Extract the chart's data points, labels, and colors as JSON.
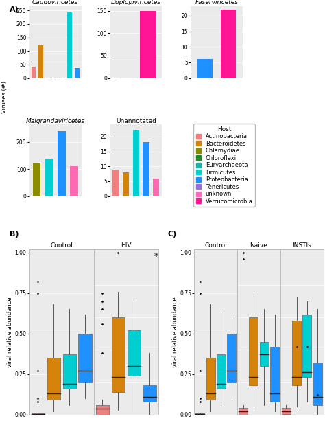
{
  "host_colors": {
    "Actinobacteria": "#F08080",
    "Bacteroidetes": "#D4820A",
    "Chlamydiae": "#8B8B00",
    "Chloroflexi": "#228B22",
    "Euryarchaeota": "#20B2AA",
    "Firmicutes": "#00CED1",
    "Proteobacteria": "#1E90FF",
    "Tenericutes": "#9370DB",
    "unknown": "#FF69B4",
    "Verrucomicrobia": "#FF1493"
  },
  "host_order": [
    "Actinobacteria",
    "Bacteroidetes",
    "Chlamydiae",
    "Chloroflexi",
    "Euryarchaeota",
    "Firmicutes",
    "Proteobacteria",
    "Tenericutes",
    "unknown",
    "Verrucomicrobia"
  ],
  "panel_A": {
    "subplots": [
      {
        "title": "Caudoviricetes",
        "italic": true,
        "bars": {
          "Actinobacteria": 42,
          "Bacteroidetes": 120,
          "Chlamydiae": 2,
          "Chloroflexi": 1,
          "Euryarchaeota": 1,
          "Firmicutes": 243,
          "Proteobacteria": 38,
          "Tenericutes": 0,
          "unknown": 0,
          "Verrucomicrobia": 0
        },
        "yticks": [
          0,
          50,
          100,
          150,
          200,
          250
        ],
        "ylim": [
          0,
          265
        ]
      },
      {
        "title": "Duplopiviricetes",
        "italic": true,
        "bars": {
          "Actinobacteria": 0,
          "Bacteroidetes": 0,
          "Chlamydiae": 0,
          "Chloroflexi": 0,
          "Euryarchaeota": 0,
          "Firmicutes": 1,
          "Proteobacteria": 0,
          "Tenericutes": 0,
          "unknown": 0,
          "Verrucomicrobia": 150
        },
        "yticks": [
          0,
          50,
          100,
          150
        ],
        "ylim": [
          0,
          160
        ]
      },
      {
        "title": "Faserviricetes",
        "italic": true,
        "bars": {
          "Actinobacteria": 0,
          "Bacteroidetes": 0,
          "Chlamydiae": 0,
          "Chloroflexi": 0,
          "Euryarchaeota": 0,
          "Firmicutes": 0,
          "Proteobacteria": 6,
          "Tenericutes": 0,
          "unknown": 0,
          "Verrucomicrobia": 22
        },
        "yticks": [
          0,
          5,
          10,
          15,
          20
        ],
        "ylim": [
          0,
          23
        ]
      },
      {
        "title": "Malgrandaviricetes",
        "italic": true,
        "bars": {
          "Actinobacteria": 0,
          "Bacteroidetes": 0,
          "Chlamydiae": 125,
          "Chloroflexi": 0,
          "Euryarchaeota": 0,
          "Firmicutes": 140,
          "Proteobacteria": 240,
          "Tenericutes": 0,
          "unknown": 110,
          "Verrucomicrobia": 0
        },
        "yticks": [
          0,
          100,
          200
        ],
        "ylim": [
          0,
          265
        ]
      },
      {
        "title": "Unannotated",
        "italic": false,
        "bars": {
          "Actinobacteria": 9,
          "Bacteroidetes": 8,
          "Chlamydiae": 0,
          "Chloroflexi": 0,
          "Euryarchaeota": 0,
          "Firmicutes": 22,
          "Proteobacteria": 18,
          "Tenericutes": 0,
          "unknown": 6,
          "Verrucomicrobia": 0
        },
        "yticks": [
          0,
          5,
          10,
          15,
          20
        ],
        "ylim": [
          0,
          24
        ]
      }
    ]
  },
  "panel_B": {
    "groups": [
      "Control",
      "HIV"
    ],
    "hosts_shown": [
      "Actinobacteria",
      "Bacteroidetes",
      "Firmicutes",
      "Proteobacteria"
    ],
    "colors": [
      "#F08080",
      "#D4820A",
      "#00CED1",
      "#1E90FF"
    ],
    "data": {
      "Control": {
        "Actinobacteria": {
          "q1": 0.002,
          "med": 0.004,
          "q3": 0.007,
          "whislo": 0.0,
          "whishi": 0.013,
          "fliers": [
            0.27,
            0.82,
            0.75,
            0.1,
            0.08
          ]
        },
        "Bacteroidetes": {
          "q1": 0.09,
          "med": 0.13,
          "q3": 0.35,
          "whislo": 0.02,
          "whishi": 0.68,
          "fliers": []
        },
        "Firmicutes": {
          "q1": 0.16,
          "med": 0.19,
          "q3": 0.37,
          "whislo": 0.06,
          "whishi": 0.65,
          "fliers": []
        },
        "Proteobacteria": {
          "q1": 0.2,
          "med": 0.27,
          "q3": 0.5,
          "whislo": 0.1,
          "whishi": 0.62,
          "fliers": []
        }
      },
      "HIV": {
        "Actinobacteria": {
          "q1": 0.0,
          "med": 0.035,
          "q3": 0.06,
          "whislo": 0.0,
          "whishi": 0.09,
          "fliers": [
            0.38,
            0.65,
            0.7,
            0.75,
            0.56
          ]
        },
        "Bacteroidetes": {
          "q1": 0.14,
          "med": 0.23,
          "q3": 0.6,
          "whislo": 0.03,
          "whishi": 0.76,
          "fliers": [
            1.0
          ]
        },
        "Firmicutes": {
          "q1": 0.24,
          "med": 0.3,
          "q3": 0.52,
          "whislo": 0.02,
          "whishi": 0.72,
          "fliers": []
        },
        "Proteobacteria": {
          "q1": 0.08,
          "med": 0.11,
          "q3": 0.18,
          "whislo": 0.0,
          "whishi": 0.38,
          "fliers": []
        }
      }
    },
    "ylabel": "viral relative abundance",
    "ylim": [
      0.0,
      1.02
    ],
    "sig_group": "HIV",
    "sig_text": "*"
  },
  "panel_C": {
    "groups": [
      "Control",
      "Naive",
      "INSTIs"
    ],
    "hosts_shown": [
      "Actinobacteria",
      "Bacteroidetes",
      "Firmicutes",
      "Proteobacteria"
    ],
    "colors": [
      "#F08080",
      "#D4820A",
      "#00CED1",
      "#1E90FF"
    ],
    "data": {
      "Control": {
        "Actinobacteria": {
          "q1": 0.002,
          "med": 0.004,
          "q3": 0.007,
          "whislo": 0.0,
          "whishi": 0.013,
          "fliers": [
            0.27,
            0.82,
            0.75,
            0.1,
            0.08
          ]
        },
        "Bacteroidetes": {
          "q1": 0.09,
          "med": 0.13,
          "q3": 0.35,
          "whislo": 0.02,
          "whishi": 0.68,
          "fliers": []
        },
        "Firmicutes": {
          "q1": 0.16,
          "med": 0.19,
          "q3": 0.37,
          "whislo": 0.06,
          "whishi": 0.65,
          "fliers": []
        },
        "Proteobacteria": {
          "q1": 0.2,
          "med": 0.27,
          "q3": 0.5,
          "whislo": 0.1,
          "whishi": 0.62,
          "fliers": []
        }
      },
      "Naive": {
        "Actinobacteria": {
          "q1": 0.0,
          "med": 0.02,
          "q3": 0.04,
          "whislo": 0.0,
          "whishi": 0.06,
          "fliers": [
            1.0,
            0.96
          ]
        },
        "Bacteroidetes": {
          "q1": 0.18,
          "med": 0.23,
          "q3": 0.6,
          "whislo": 0.05,
          "whishi": 0.75,
          "fliers": []
        },
        "Firmicutes": {
          "q1": 0.3,
          "med": 0.37,
          "q3": 0.45,
          "whislo": 0.06,
          "whishi": 0.65,
          "fliers": []
        },
        "Proteobacteria": {
          "q1": 0.08,
          "med": 0.13,
          "q3": 0.42,
          "whislo": 0.02,
          "whishi": 0.62,
          "fliers": []
        }
      },
      "INSTIs": {
        "Actinobacteria": {
          "q1": 0.002,
          "med": 0.02,
          "q3": 0.04,
          "whislo": 0.0,
          "whishi": 0.06,
          "fliers": []
        },
        "Bacteroidetes": {
          "q1": 0.18,
          "med": 0.23,
          "q3": 0.58,
          "whislo": 0.05,
          "whishi": 0.73,
          "fliers": [
            0.42
          ]
        },
        "Firmicutes": {
          "q1": 0.23,
          "med": 0.26,
          "q3": 0.62,
          "whislo": 0.08,
          "whishi": 0.7,
          "fliers": [
            0.42
          ]
        },
        "Proteobacteria": {
          "q1": 0.06,
          "med": 0.11,
          "q3": 0.32,
          "whislo": 0.0,
          "whishi": 0.65,
          "fliers": [
            0.12
          ]
        }
      }
    },
    "ylabel": "viral relative abundance",
    "ylim": [
      0.0,
      1.02
    ]
  },
  "background_color": "#FFFFFF",
  "panel_bg": "#EBEBEB",
  "grid_color": "#FFFFFF",
  "axis_label_fontsize": 6,
  "tick_fontsize": 5.5,
  "title_fontsize": 6.5,
  "legend_fontsize": 6,
  "legend_title_fontsize": 6.5
}
